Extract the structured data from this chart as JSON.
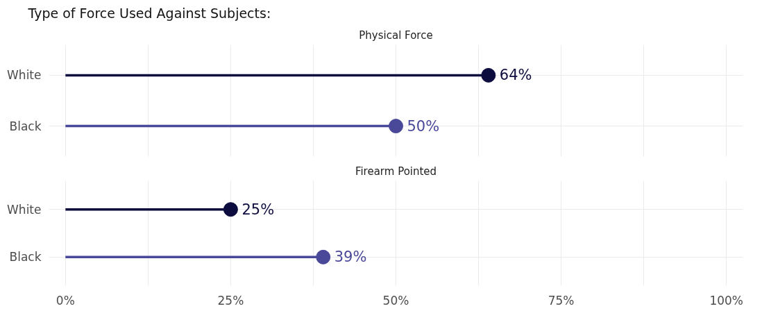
{
  "chart_data": [
    {
      "type": "lollipop",
      "title": "Type of Force Used Against Subjects:",
      "subtitle": "Physical Force",
      "orientation": "horizontal",
      "categories": [
        "White",
        "Black"
      ],
      "values": [
        64,
        50
      ],
      "colors": [
        "#0d0c3e",
        "#4a4899"
      ],
      "value_labels": [
        "64%",
        "50%"
      ],
      "marker": "circle",
      "xlim": [
        -2.5,
        102.5
      ],
      "xticks": [
        {
          "value": 0,
          "label": null
        },
        {
          "value": 12.5,
          "label": null
        },
        {
          "value": 25,
          "label": null
        },
        {
          "value": 37.5,
          "label": null
        },
        {
          "value": 50,
          "label": null
        },
        {
          "value": 62.5,
          "label": null
        },
        {
          "value": 75,
          "label": null
        },
        {
          "value": 87.5,
          "label": null
        },
        {
          "value": 100,
          "label": null
        }
      ],
      "grid": true,
      "tick_labels": "y"
    },
    {
      "type": "lollipop",
      "subtitle": "Firearm Pointed",
      "orientation": "horizontal",
      "categories": [
        "White",
        "Black"
      ],
      "values": [
        25,
        39
      ],
      "colors": [
        "#0d0c3e",
        "#4a4899"
      ],
      "value_labels": [
        "25%",
        "39%"
      ],
      "marker": "circle",
      "xlim": [
        -2.5,
        102.5
      ],
      "xticks": [
        {
          "value": 0,
          "label": "0%"
        },
        {
          "value": 12.5,
          "label": null
        },
        {
          "value": 25,
          "label": "25%"
        },
        {
          "value": 37.5,
          "label": null
        },
        {
          "value": 50,
          "label": "50%"
        },
        {
          "value": 62.5,
          "label": null
        },
        {
          "value": 75,
          "label": "75%"
        },
        {
          "value": 87.5,
          "label": null
        },
        {
          "value": 100,
          "label": "100%"
        }
      ],
      "grid": true
    }
  ]
}
